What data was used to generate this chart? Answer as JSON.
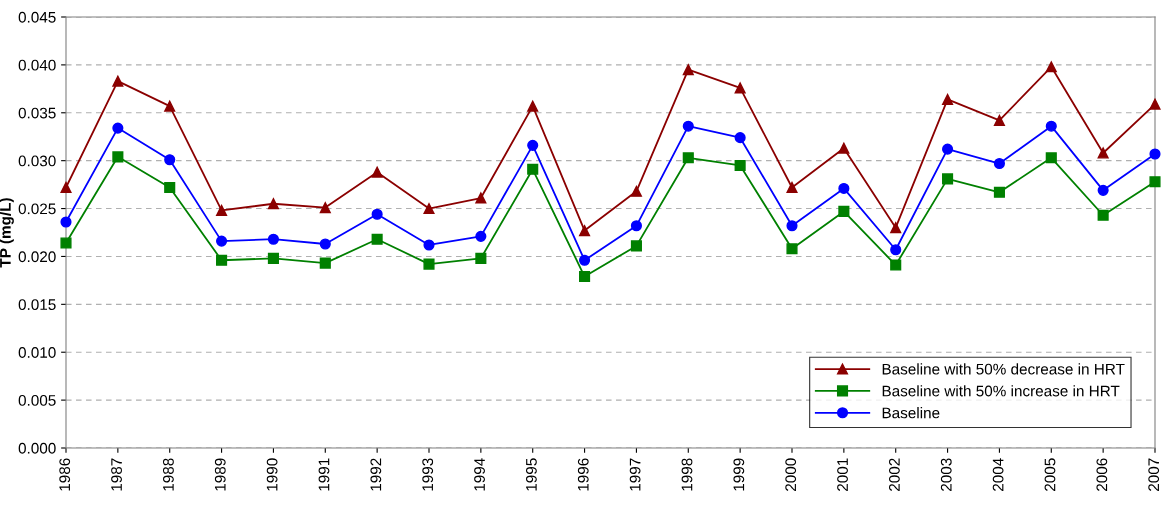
{
  "chart_data": {
    "type": "line",
    "ylabel": "TP (mg/L)",
    "categories": [
      "1986",
      "1987",
      "1988",
      "1989",
      "1990",
      "1991",
      "1992",
      "1993",
      "1994",
      "1995",
      "1996",
      "1997",
      "1998",
      "1999",
      "2000",
      "2001",
      "2002",
      "2003",
      "2004",
      "2005",
      "2006",
      "2007"
    ],
    "series": [
      {
        "name": "Baseline with 50% decrease in HRT",
        "color": "#8b0000",
        "marker": "triangle",
        "values": [
          0.0272,
          0.0383,
          0.0357,
          0.0248,
          0.0255,
          0.0251,
          0.0288,
          0.025,
          0.0261,
          0.0357,
          0.0227,
          0.0268,
          0.0395,
          0.0376,
          0.0272,
          0.0313,
          0.023,
          0.0364,
          0.0342,
          0.0398,
          0.0308,
          0.0359
        ]
      },
      {
        "name": "Baseline with 50% increase in HRT",
        "color": "#008000",
        "marker": "square",
        "values": [
          0.0214,
          0.0304,
          0.0272,
          0.0196,
          0.0198,
          0.0193,
          0.0218,
          0.0192,
          0.0198,
          0.0291,
          0.0179,
          0.0211,
          0.0303,
          0.0295,
          0.0208,
          0.0247,
          0.0191,
          0.0281,
          0.0267,
          0.0303,
          0.0243,
          0.0278
        ]
      },
      {
        "name": "Baseline",
        "color": "#0000ff",
        "marker": "circle",
        "values": [
          0.0236,
          0.0334,
          0.0301,
          0.0216,
          0.0218,
          0.0213,
          0.0244,
          0.0212,
          0.0221,
          0.0316,
          0.0196,
          0.0232,
          0.0336,
          0.0324,
          0.0232,
          0.0271,
          0.0207,
          0.0312,
          0.0297,
          0.0336,
          0.0269,
          0.0307
        ]
      }
    ],
    "ylim": [
      0,
      0.045
    ],
    "yticks": [
      {
        "value": 0,
        "label": "0.000"
      },
      {
        "value": 0.005,
        "label": "0.005"
      },
      {
        "value": 0.01,
        "label": "0.010"
      },
      {
        "value": 0.015,
        "label": "0.015"
      },
      {
        "value": 0.02,
        "label": "0.020"
      },
      {
        "value": 0.025,
        "label": "0.025"
      },
      {
        "value": 0.03,
        "label": "0.030"
      },
      {
        "value": 0.035,
        "label": "0.035"
      },
      {
        "value": 0.04,
        "label": "0.040"
      },
      {
        "value": 0.045,
        "label": "0.045"
      }
    ],
    "grid": "y",
    "legend": "bottom right",
    "line_style": "solid"
  }
}
